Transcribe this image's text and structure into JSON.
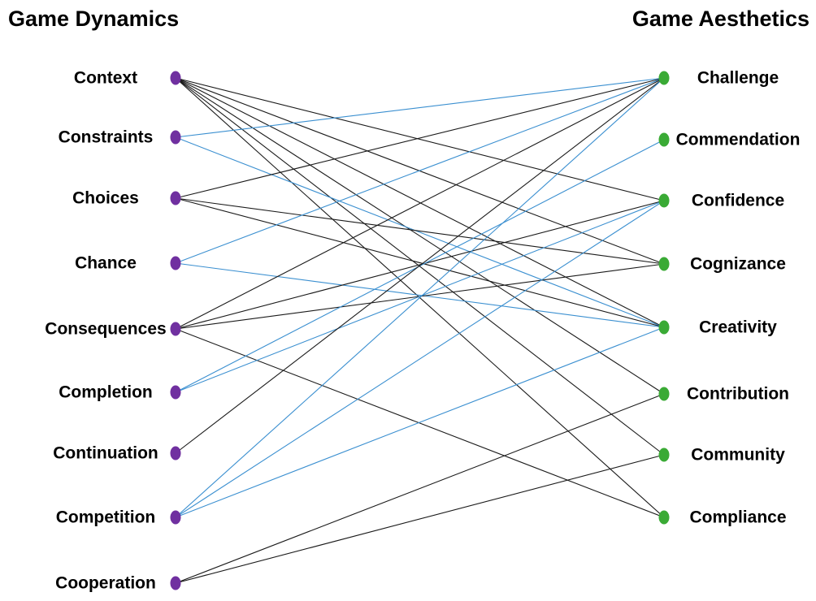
{
  "headings": {
    "left": "Game Dynamics",
    "right": "Game Aesthetics"
  },
  "colors": {
    "dynamics_node": "#7030a0",
    "aesthetics_node": "#3aaa35",
    "black_edge": "#1a1a1a",
    "blue_edge": "#3a8fd0"
  },
  "dynamics": [
    "Context",
    "Constraints",
    "Choices",
    "Chance",
    "Consequences",
    "Completion",
    "Continuation",
    "Competition",
    "Cooperation"
  ],
  "aesthetics": [
    "Challenge",
    "Commendation",
    "Confidence",
    "Cognizance",
    "Creativity",
    "Contribution",
    "Community",
    "Compliance"
  ],
  "edges": [
    {
      "from": "Context",
      "to": "Confidence",
      "color": "black"
    },
    {
      "from": "Context",
      "to": "Cognizance",
      "color": "black"
    },
    {
      "from": "Context",
      "to": "Creativity",
      "color": "black"
    },
    {
      "from": "Context",
      "to": "Contribution",
      "color": "black"
    },
    {
      "from": "Context",
      "to": "Community",
      "color": "black"
    },
    {
      "from": "Context",
      "to": "Compliance",
      "color": "black"
    },
    {
      "from": "Constraints",
      "to": "Challenge",
      "color": "blue"
    },
    {
      "from": "Constraints",
      "to": "Creativity",
      "color": "blue"
    },
    {
      "from": "Choices",
      "to": "Challenge",
      "color": "black"
    },
    {
      "from": "Choices",
      "to": "Cognizance",
      "color": "black"
    },
    {
      "from": "Choices",
      "to": "Creativity",
      "color": "black"
    },
    {
      "from": "Chance",
      "to": "Challenge",
      "color": "blue"
    },
    {
      "from": "Chance",
      "to": "Creativity",
      "color": "blue"
    },
    {
      "from": "Consequences",
      "to": "Challenge",
      "color": "black"
    },
    {
      "from": "Consequences",
      "to": "Confidence",
      "color": "black"
    },
    {
      "from": "Consequences",
      "to": "Cognizance",
      "color": "black"
    },
    {
      "from": "Consequences",
      "to": "Compliance",
      "color": "black"
    },
    {
      "from": "Completion",
      "to": "Commendation",
      "color": "blue"
    },
    {
      "from": "Completion",
      "to": "Confidence",
      "color": "blue"
    },
    {
      "from": "Continuation",
      "to": "Challenge",
      "color": "black"
    },
    {
      "from": "Competition",
      "to": "Challenge",
      "color": "blue"
    },
    {
      "from": "Competition",
      "to": "Confidence",
      "color": "blue"
    },
    {
      "from": "Competition",
      "to": "Creativity",
      "color": "blue"
    },
    {
      "from": "Cooperation",
      "to": "Contribution",
      "color": "black"
    },
    {
      "from": "Cooperation",
      "to": "Community",
      "color": "black"
    }
  ]
}
